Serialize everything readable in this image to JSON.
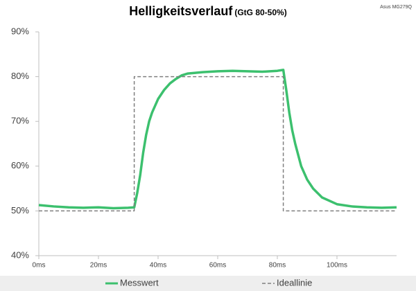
{
  "chart_data": {
    "type": "line",
    "title": "Helligkeitsverlauf",
    "subtitle": "(GtG 80-50%)",
    "annotation": "Asus MG279Q",
    "series": [
      {
        "name": "Messwert",
        "color": "#3cc06e",
        "style": "solid",
        "x": [
          0,
          5,
          10,
          15,
          20,
          25,
          30,
          32,
          33,
          34,
          35,
          36,
          37,
          38,
          40,
          42,
          44,
          46,
          48,
          50,
          55,
          60,
          65,
          70,
          75,
          80,
          82,
          83,
          84,
          85,
          86,
          88,
          90,
          92,
          95,
          100,
          105,
          110,
          115,
          120
        ],
        "values": [
          51.3,
          51.0,
          50.8,
          50.7,
          50.8,
          50.6,
          50.7,
          50.8,
          54,
          58,
          63,
          67,
          70,
          72,
          75,
          77,
          78.5,
          79.5,
          80.3,
          80.7,
          81,
          81.2,
          81.3,
          81.2,
          81.1,
          81.3,
          81.5,
          77,
          72,
          68,
          65,
          60,
          57,
          55,
          53,
          51.5,
          51,
          50.8,
          50.7,
          50.8
        ]
      },
      {
        "name": "Ideallinie",
        "color": "#7f7f7f",
        "style": "dashed",
        "x": [
          0,
          32,
          32,
          82,
          82,
          120
        ],
        "values": [
          50,
          50,
          80,
          80,
          50,
          50
        ]
      }
    ],
    "xlim": [
      0,
      120
    ],
    "xticks": [
      {
        "value": 0,
        "label": "0ms"
      },
      {
        "value": 20,
        "label": "20ms"
      },
      {
        "value": 40,
        "label": "40ms"
      },
      {
        "value": 60,
        "label": "60ms"
      },
      {
        "value": 80,
        "label": "80ms"
      },
      {
        "value": 100,
        "label": "100ms"
      }
    ],
    "ylim": [
      40,
      90
    ],
    "yticks": [
      {
        "value": 40,
        "label": "40%"
      },
      {
        "value": 50,
        "label": "50%"
      },
      {
        "value": 60,
        "label": "60%"
      },
      {
        "value": 70,
        "label": "70%"
      },
      {
        "value": 80,
        "label": "80%"
      },
      {
        "value": 90,
        "label": "90%"
      }
    ],
    "legend": "bottom"
  }
}
